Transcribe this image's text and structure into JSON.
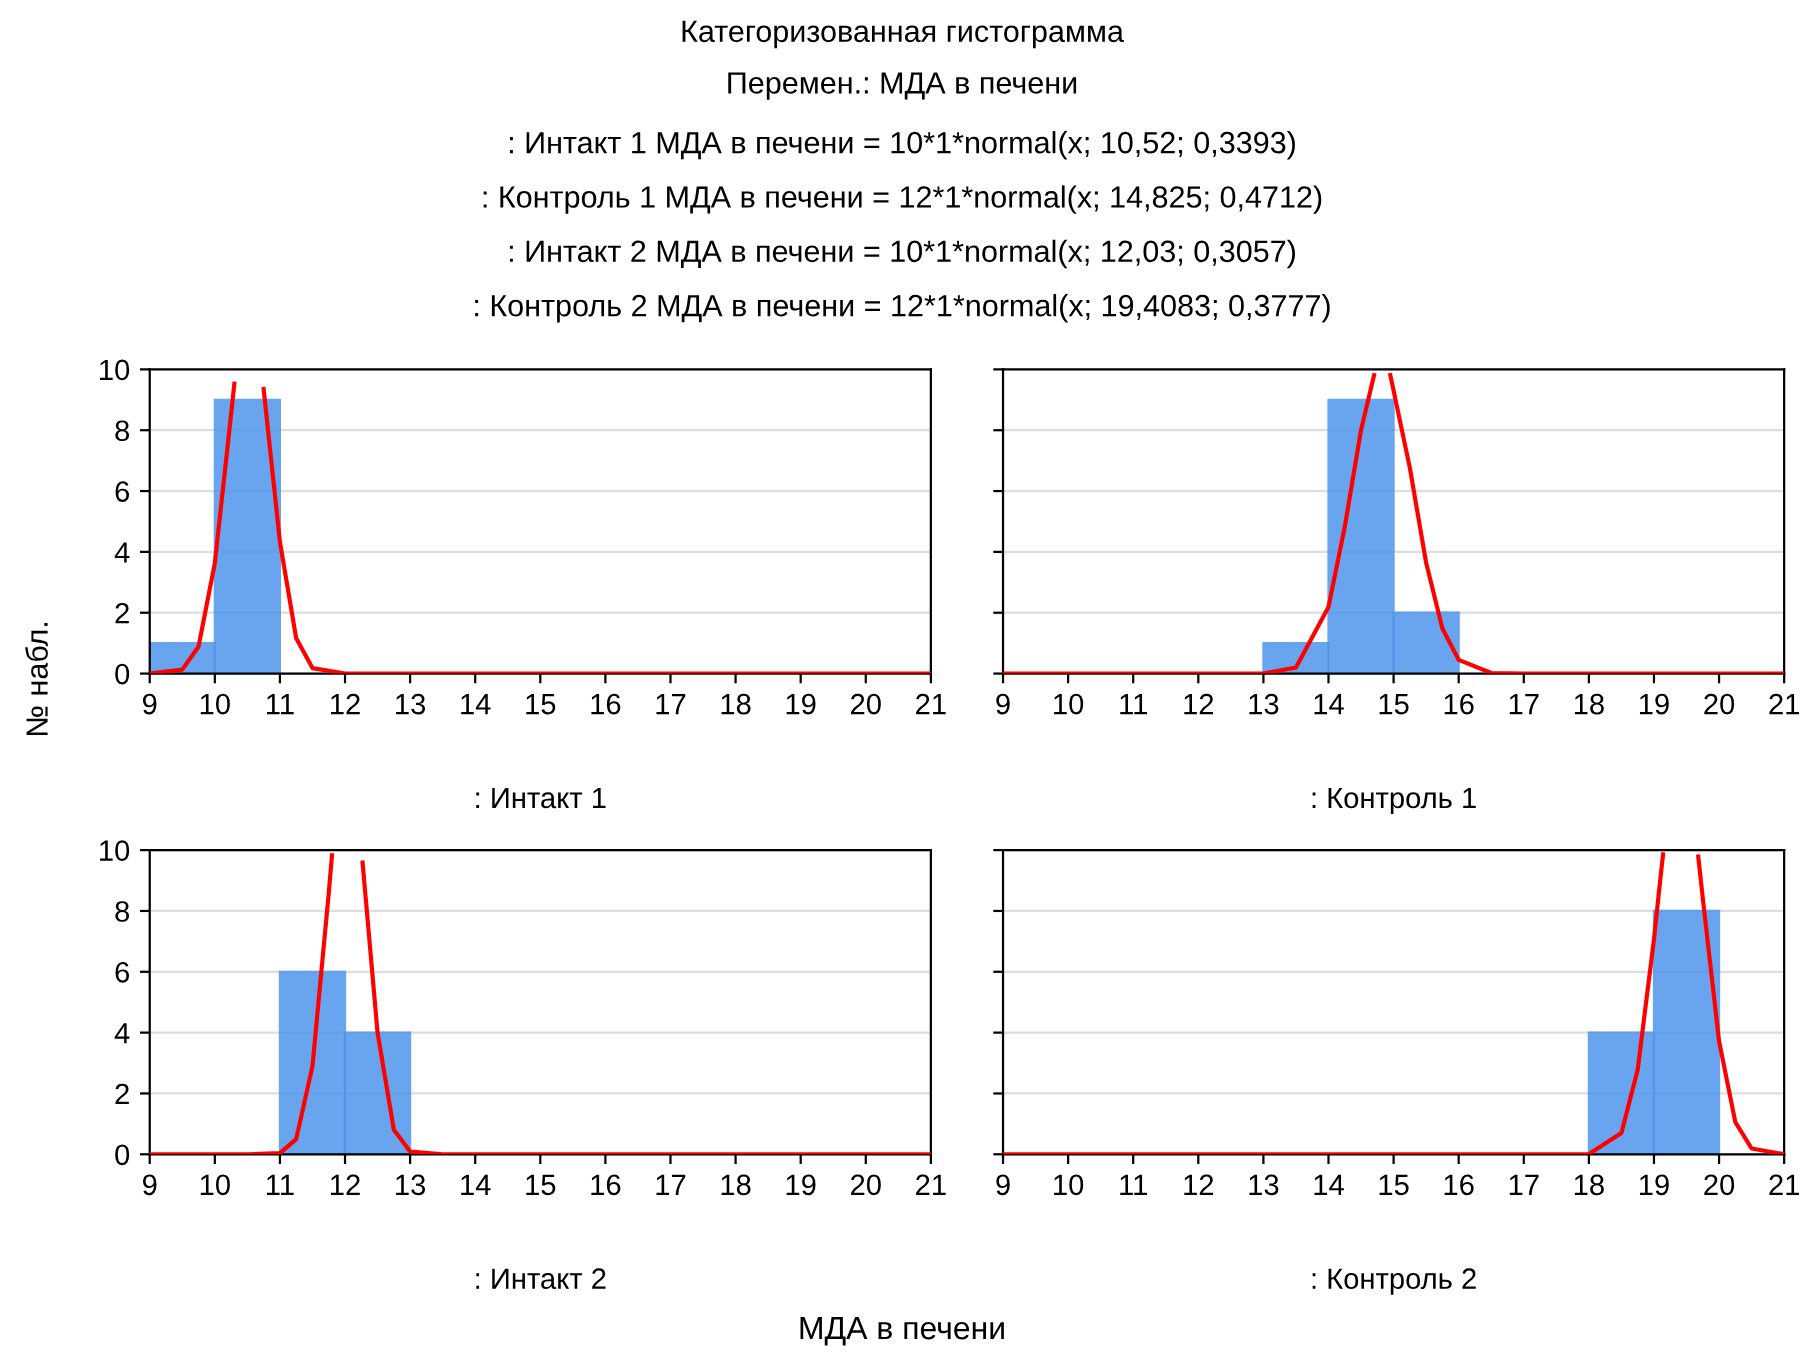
{
  "chart_data": [
    {
      "type": "histogram",
      "title": "Категоризованная гистограмма",
      "subtitle": "Перемен.: МДА в печени",
      "xlabel": ": Интакт 1",
      "ylabel": "№ набл.",
      "annotations": [
        ": Интакт 1 МДА в печени = 10*1*normal(x; 10,52; 0,3393)",
        ": Контроль 1 МДА в печени = 12*1*normal(x; 14,825; 0,4712)",
        ": Интакт 2 МДА в печени = 10*1*normal(x; 12,03; 0,3057)",
        ": Контроль 2 МДА в печени = 12*1*normal(x; 19,4083; 0,3777)"
      ],
      "xlim": [
        9,
        21
      ],
      "xticks": [
        9,
        10,
        11,
        12,
        13,
        14,
        15,
        16,
        17,
        18,
        19,
        20,
        21
      ],
      "ylim": [
        0,
        10
      ],
      "yticks": [
        0,
        2,
        4,
        6,
        8,
        10
      ],
      "grid": "y",
      "series": [
        {
          "bins": [
            9,
            10,
            11
          ],
          "values": [
            1,
            9
          ],
          "color": "#4f94ec"
        },
        {
          "type": "line",
          "color": "#ff0000",
          "x": [
            9,
            9.5,
            9.75,
            10,
            10.2,
            10.3,
            10.33,
            10.75,
            11,
            11.25,
            11.5,
            12,
            21
          ],
          "values": [
            0,
            0.13,
            0.89,
            3.63,
            7.54,
            9.53,
            null,
            9.35,
            4.33,
            1.16,
            0.18,
            0,
            0
          ]
        }
      ]
    },
    {
      "type": "histogram",
      "xlabel": ": Контроль 1",
      "tick_labels": "x",
      "xlim": [
        9,
        21
      ],
      "xticks": [
        9,
        10,
        11,
        12,
        13,
        14,
        15,
        16,
        17,
        18,
        19,
        20,
        21
      ],
      "ylim": [
        0,
        10
      ],
      "yticks": [
        0,
        2,
        4,
        6,
        8,
        10
      ],
      "grid": "y",
      "series": [
        {
          "bins": [
            13,
            14,
            15,
            16
          ],
          "values": [
            1,
            9,
            2
          ],
          "color": "#4f94ec"
        },
        {
          "type": "line",
          "color": "#ff0000",
          "x": [
            9,
            13,
            13.5,
            14,
            14.25,
            14.5,
            14.7,
            14.72,
            14.95,
            15.25,
            15.5,
            15.75,
            16,
            16.5,
            17,
            21
          ],
          "values": [
            0,
            0,
            0.2,
            2.19,
            4.82,
            8.01,
            9.81,
            null,
            9.81,
            6.76,
            3.64,
            1.48,
            0.45,
            0.02,
            0,
            0
          ]
        }
      ]
    },
    {
      "type": "histogram",
      "xlabel": ": Интакт 2",
      "xlim": [
        9,
        21
      ],
      "xticks": [
        9,
        10,
        11,
        12,
        13,
        14,
        15,
        16,
        17,
        18,
        19,
        20,
        21
      ],
      "ylim": [
        0,
        10
      ],
      "yticks": [
        0,
        2,
        4,
        6,
        8,
        10
      ],
      "grid": "y",
      "series": [
        {
          "bins": [
            11,
            12,
            13
          ],
          "values": [
            6,
            4
          ],
          "color": "#4f94ec"
        },
        {
          "type": "line",
          "color": "#ff0000",
          "x": [
            9,
            10.5,
            11,
            11.25,
            11.5,
            11.75,
            11.8,
            11.85,
            12.27,
            12.5,
            12.75,
            13,
            13.5,
            21
          ],
          "values": [
            0,
            0,
            0.04,
            0.5,
            2.9,
            8.58,
            9.83,
            null,
            9.59,
            4.0,
            0.81,
            0.09,
            0,
            0
          ]
        }
      ]
    },
    {
      "type": "histogram",
      "xlabel": ": Контроль 2",
      "tick_labels": "x",
      "annotations": [
        "МДА в печени"
      ],
      "xlim": [
        9,
        21
      ],
      "xticks": [
        9,
        10,
        11,
        12,
        13,
        14,
        15,
        16,
        17,
        18,
        19,
        20,
        21
      ],
      "ylim": [
        0,
        10
      ],
      "yticks": [
        0,
        2,
        4,
        6,
        8,
        10
      ],
      "grid": "y",
      "series": [
        {
          "bins": [
            18,
            19,
            20
          ],
          "values": [
            4,
            8
          ],
          "color": "#4f94ec"
        },
        {
          "type": "line",
          "color": "#ff0000",
          "x": [
            9,
            17.5,
            18,
            18.5,
            18.75,
            19,
            19.1,
            19.14,
            19.16,
            19.68,
            19.75,
            20,
            20.25,
            20.5,
            21
          ],
          "values": [
            0,
            0,
            0.01,
            0.7,
            2.78,
            7.07,
            9.09,
            9.86,
            null,
            9.79,
            8.42,
            3.72,
            1.06,
            0.19,
            0
          ]
        }
      ]
    }
  ]
}
